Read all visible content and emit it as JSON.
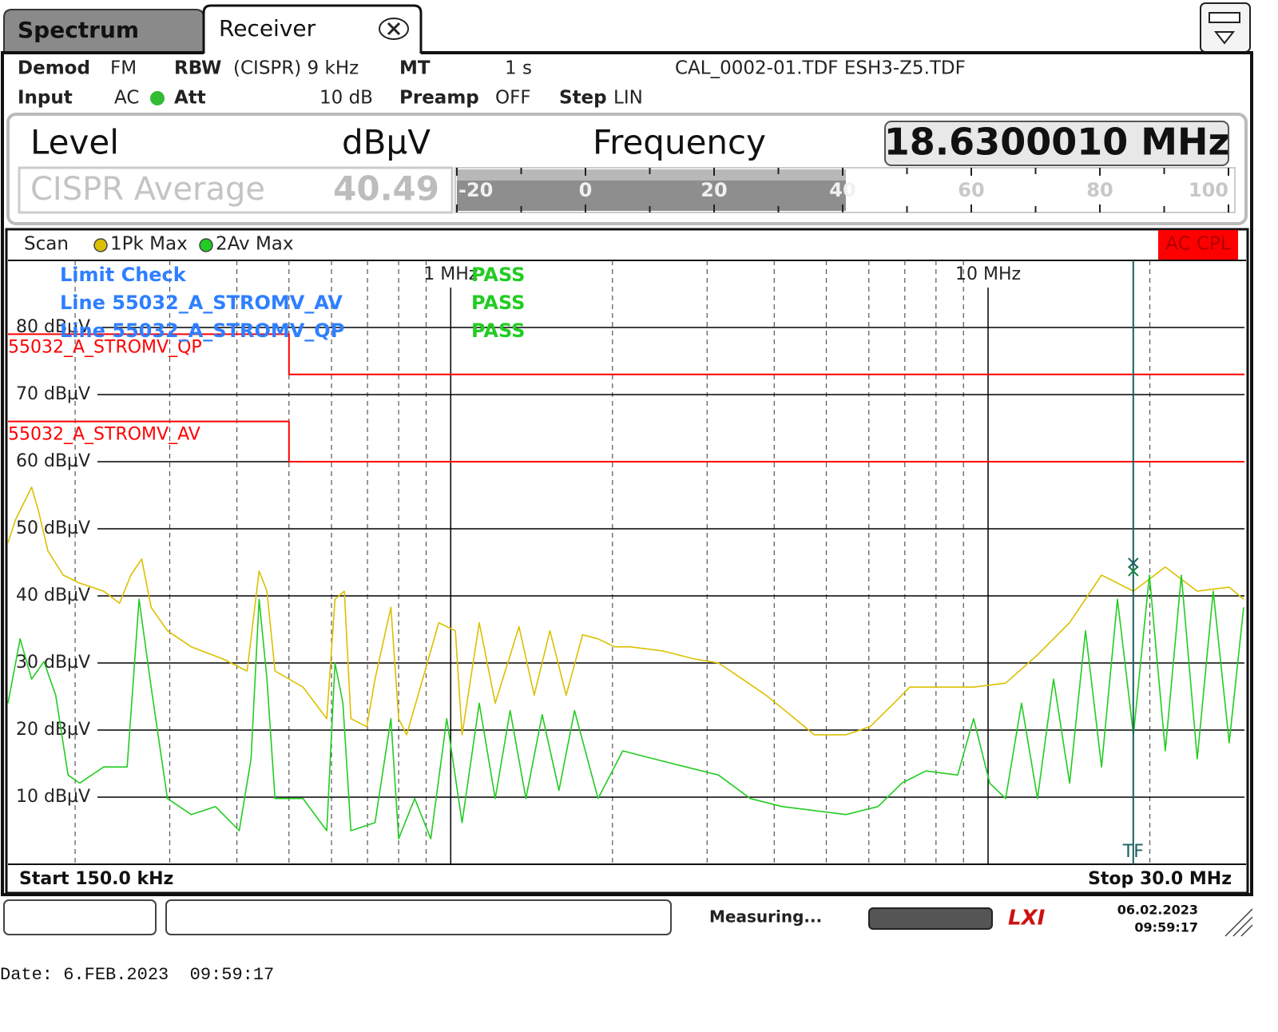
{
  "tabs": {
    "spectrum": "Spectrum",
    "receiver": "Receiver"
  },
  "settings": {
    "demod_label": "Demod",
    "demod": "FM",
    "rbw_label": "RBW",
    "rbw": "(CISPR) 9 kHz",
    "mt_label": "MT",
    "mt": "1 s",
    "transducers": "CAL_0002-01.TDF ESH3-Z5.TDF",
    "input_label": "Input",
    "input": "AC",
    "att_label": "Att",
    "att": "10 dB",
    "preamp_label": "Preamp",
    "preamp": "OFF",
    "step_label": "Step",
    "step": "LIN"
  },
  "level_panel": {
    "level_label": "Level",
    "unit": "dBµV",
    "frequency_label": "Frequency",
    "frequency": "18.6300010 MHz",
    "detector": "CISPR Average",
    "meter": {
      "value": 40.49,
      "lim": [
        -20,
        100
      ],
      "ticks": [
        -20,
        0,
        20,
        40,
        60,
        80,
        100
      ],
      "minor_ticks": [
        -10,
        10,
        30,
        50,
        70,
        90
      ]
    }
  },
  "chart_data": {
    "type": "line",
    "x_scale": "log",
    "trace_label": "Scan",
    "badge": "AC CPL",
    "series": [
      {
        "name": "1Pk Max",
        "color": "#dcc000",
        "x": [
          0.15,
          0.155,
          0.166,
          0.171,
          0.178,
          0.19,
          0.204,
          0.226,
          0.242,
          0.254,
          0.266,
          0.277,
          0.297,
          0.329,
          0.377,
          0.418,
          0.44,
          0.455,
          0.471,
          0.531,
          0.588,
          0.609,
          0.634,
          0.652,
          0.698,
          0.723,
          0.774,
          0.8,
          0.828,
          0.887,
          0.95,
          1.02,
          1.05,
          1.13,
          1.21,
          1.34,
          1.43,
          1.53,
          1.64,
          1.76,
          1.88,
          2.02,
          2.16,
          2.48,
          2.84,
          3.15,
          3.49,
          3.86,
          4.28,
          4.75,
          5.44,
          6.03,
          6.68,
          7.15,
          8.2,
          9.4,
          10.78,
          12.36,
          14.18,
          16.26,
          18.64,
          21.37,
          24.51,
          28.1,
          29.9
        ],
        "values": [
          47.9,
          51.4,
          56.2,
          52.6,
          46.7,
          43.1,
          41.9,
          40.7,
          38.9,
          43.1,
          45.5,
          38.3,
          34.8,
          32.4,
          30.6,
          28.8,
          43.7,
          40.7,
          28.8,
          26.4,
          21.7,
          39.5,
          40.7,
          21.7,
          20.5,
          27.6,
          38.3,
          21.7,
          19.3,
          27.6,
          36.0,
          34.8,
          19.3,
          36.0,
          24.0,
          35.4,
          25.2,
          34.8,
          25.2,
          34.2,
          33.6,
          32.4,
          32.4,
          31.8,
          30.6,
          30.0,
          27.6,
          25.2,
          22.3,
          19.3,
          19.3,
          20.5,
          24.0,
          26.4,
          26.4,
          26.4,
          27.0,
          31.2,
          36.0,
          43.1,
          40.7,
          44.3,
          40.7,
          41.3,
          39.5
        ]
      },
      {
        "name": "2Av Max",
        "color": "#22cc22",
        "x": [
          0.15,
          0.158,
          0.166,
          0.175,
          0.184,
          0.194,
          0.204,
          0.226,
          0.25,
          0.263,
          0.277,
          0.297,
          0.329,
          0.365,
          0.404,
          0.425,
          0.44,
          0.455,
          0.471,
          0.531,
          0.588,
          0.609,
          0.63,
          0.652,
          0.723,
          0.774,
          0.8,
          0.857,
          0.918,
          0.983,
          1.05,
          1.13,
          1.21,
          1.29,
          1.38,
          1.48,
          1.59,
          1.7,
          1.88,
          2.09,
          2.39,
          2.74,
          3.15,
          3.61,
          4.14,
          4.75,
          5.44,
          6.24,
          6.91,
          7.66,
          8.78,
          9.4,
          10.07,
          10.78,
          11.54,
          12.36,
          13.24,
          14.18,
          15.18,
          16.26,
          17.41,
          18.64,
          19.96,
          21.37,
          22.89,
          24.51,
          26.24,
          28.1,
          29.9
        ],
        "values": [
          24.0,
          33.6,
          27.6,
          30.2,
          25.2,
          13.3,
          12.1,
          14.5,
          14.5,
          39.5,
          26.4,
          9.8,
          7.4,
          8.6,
          5.0,
          15.7,
          39.5,
          27.6,
          9.8,
          9.8,
          5.0,
          30.0,
          24.0,
          5.0,
          6.2,
          21.7,
          3.8,
          9.8,
          3.8,
          21.7,
          6.2,
          24.0,
          9.8,
          22.9,
          9.8,
          22.3,
          11.0,
          22.9,
          9.8,
          16.9,
          15.7,
          14.5,
          13.3,
          9.8,
          8.6,
          8.0,
          7.4,
          8.6,
          12.1,
          13.9,
          13.3,
          21.7,
          12.1,
          9.8,
          24.0,
          9.8,
          27.6,
          12.1,
          34.8,
          14.5,
          39.5,
          19.3,
          43.1,
          16.9,
          43.1,
          15.7,
          40.7,
          18.1,
          38.3
        ]
      },
      {
        "name": "55032_A_STROMV_QP",
        "color": "#ff0000",
        "x": [
          0.15,
          0.5,
          0.5,
          30
        ],
        "values": [
          79,
          79,
          73,
          73
        ]
      },
      {
        "name": "55032_A_STROMV_AV",
        "color": "#ff0000",
        "x": [
          0.15,
          0.5,
          0.5,
          30
        ],
        "values": [
          66,
          66,
          60,
          60
        ]
      }
    ],
    "xlim": [
      0.15,
      30
    ],
    "xticks": [
      {
        "value": 1,
        "label": "1 MHz"
      },
      {
        "value": 10,
        "label": "10 MHz"
      }
    ],
    "xminorticks": [
      0.2,
      0.3,
      0.4,
      0.5,
      0.6,
      0.7,
      0.8,
      0.9,
      2,
      3,
      4,
      5,
      6,
      7,
      8,
      9,
      20
    ],
    "ylim": [
      0,
      90
    ],
    "yticks": [
      {
        "value": 10,
        "label": "10 dBµV"
      },
      {
        "value": 20,
        "label": "20 dBµV"
      },
      {
        "value": 30,
        "label": "30 dBµV"
      },
      {
        "value": 40,
        "label": "40 dBµV"
      },
      {
        "value": 50,
        "label": "50 dBµV"
      },
      {
        "value": 60,
        "label": "60 dBµV"
      },
      {
        "value": 70,
        "label": "70 dBµV"
      },
      {
        "value": 80,
        "label": "80 dBµV"
      }
    ],
    "start": "Start 150.0 kHz",
    "stop": "Stop 30.0 MHz",
    "limit_check": {
      "title": "Limit Check",
      "result": "PASS",
      "lines": [
        {
          "name": "Line 55032_A_STROMV_AV",
          "result": "PASS"
        },
        {
          "name": "Line 55032_A_STROMV_QP",
          "result": "PASS"
        }
      ]
    },
    "marker": {
      "label": "TF",
      "x": 18.630001,
      "values": [
        44.9,
        43.7
      ]
    }
  },
  "status_bar": {
    "state": "Measuring...",
    "logo": "LXI",
    "date": "06.02.2023",
    "time": "09:59:17"
  },
  "footer": "Date: 6.FEB.2023  09:59:17"
}
